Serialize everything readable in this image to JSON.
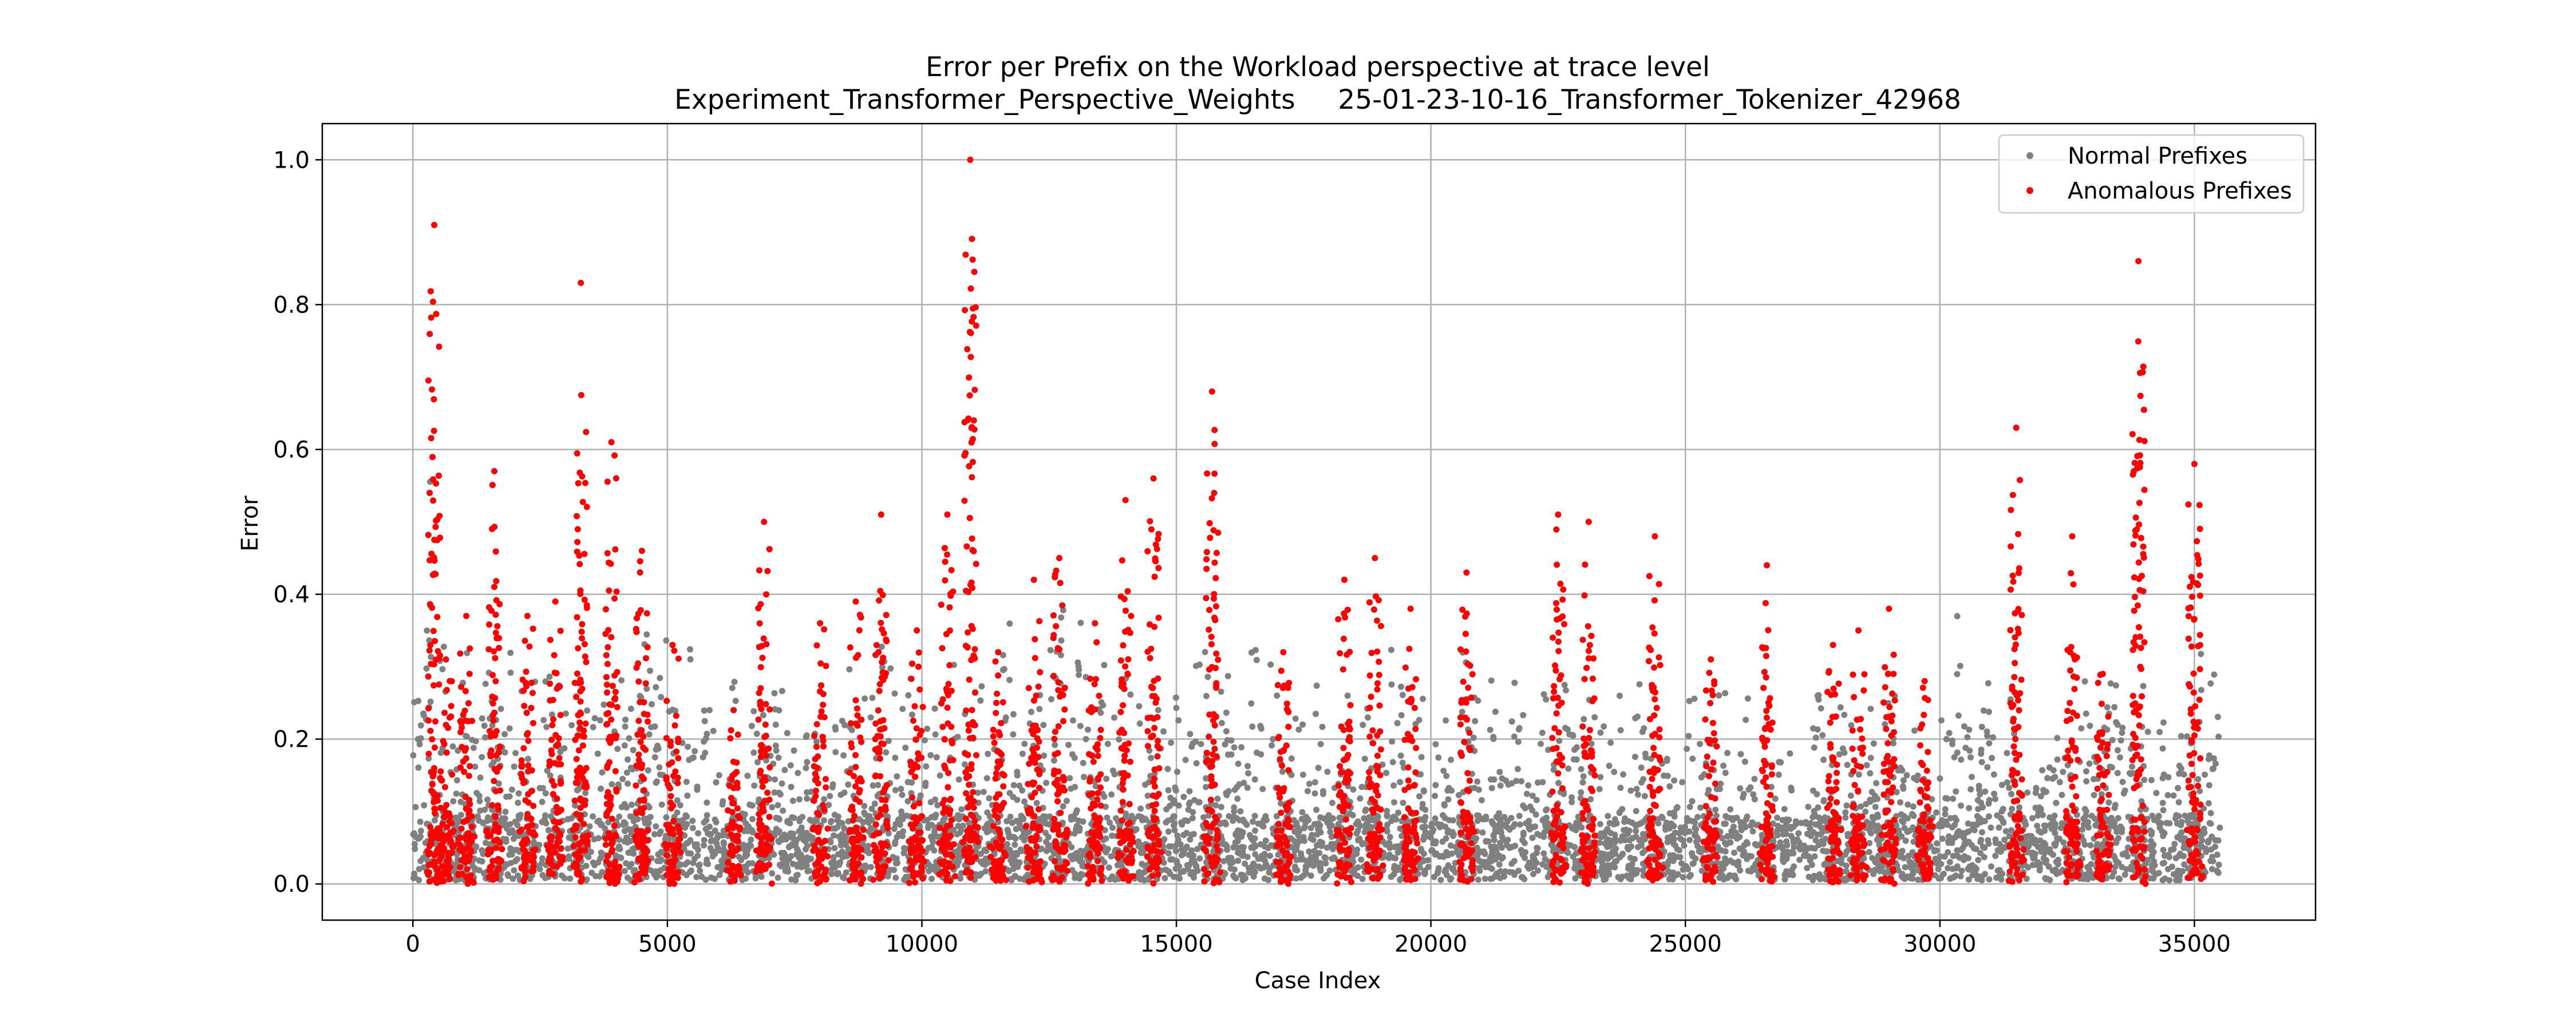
{
  "chart_data": {
    "type": "scatter",
    "title": "Error per Prefix on the Workload perspective at trace level",
    "subtitle": "Experiment_Transformer_Perspective_Weights     25-01-23-10-16_Transformer_Tokenizer_42968",
    "xlabel": "Case Index",
    "ylabel": "Error",
    "xlim": [
      -1780,
      37380
    ],
    "ylim": [
      -0.05,
      1.05
    ],
    "xticks": [
      0,
      5000,
      10000,
      15000,
      20000,
      25000,
      30000,
      35000
    ],
    "xtick_labels": [
      "0",
      "5000",
      "10000",
      "15000",
      "20000",
      "25000",
      "30000",
      "35000"
    ],
    "yticks": [
      0.0,
      0.2,
      0.4,
      0.6,
      0.8,
      1.0
    ],
    "ytick_labels": [
      "0.0",
      "0.2",
      "0.4",
      "0.6",
      "0.8",
      "1.0"
    ],
    "grid": true,
    "legend_position": "top-right",
    "colors": {
      "normal": "#808080",
      "anomalous": "#ff0000",
      "grid": "#b0b0b0"
    },
    "series": [
      {
        "name": "Normal Prefixes",
        "color": "#808080",
        "approx_point_count": 35500,
        "x_range": [
          0,
          35500
        ],
        "clusters": [
          {
            "x": 100,
            "peak": 0.28
          },
          {
            "x": 400,
            "peak": 0.68
          },
          {
            "x": 750,
            "peak": 0.24
          },
          {
            "x": 1100,
            "peak": 0.36
          },
          {
            "x": 1500,
            "peak": 0.33
          },
          {
            "x": 1900,
            "peak": 0.36
          },
          {
            "x": 2300,
            "peak": 0.36
          },
          {
            "x": 2700,
            "peak": 0.33
          },
          {
            "x": 3150,
            "peak": 0.34
          },
          {
            "x": 3600,
            "peak": 0.34
          },
          {
            "x": 4100,
            "peak": 0.36
          },
          {
            "x": 4600,
            "peak": 0.41
          },
          {
            "x": 5000,
            "peak": 0.39
          },
          {
            "x": 5400,
            "peak": 0.36
          },
          {
            "x": 5800,
            "peak": 0.34
          },
          {
            "x": 6300,
            "peak": 0.3
          },
          {
            "x": 6800,
            "peak": 0.3
          },
          {
            "x": 7200,
            "peak": 0.36
          },
          {
            "x": 7600,
            "peak": 0.33
          },
          {
            "x": 8100,
            "peak": 0.35
          },
          {
            "x": 8500,
            "peak": 0.37
          },
          {
            "x": 8900,
            "peak": 0.33
          },
          {
            "x": 9300,
            "peak": 0.36
          },
          {
            "x": 9800,
            "peak": 0.35
          },
          {
            "x": 10200,
            "peak": 0.31
          },
          {
            "x": 10700,
            "peak": 0.36
          },
          {
            "x": 11200,
            "peak": 0.33
          },
          {
            "x": 11700,
            "peak": 0.38
          },
          {
            "x": 12200,
            "peak": 0.33
          },
          {
            "x": 12700,
            "peak": 0.48
          },
          {
            "x": 13100,
            "peak": 0.42
          },
          {
            "x": 13600,
            "peak": 0.35
          },
          {
            "x": 14100,
            "peak": 0.38
          },
          {
            "x": 14600,
            "peak": 0.33
          },
          {
            "x": 15100,
            "peak": 0.37
          },
          {
            "x": 15500,
            "peak": 0.38
          },
          {
            "x": 16000,
            "peak": 0.35
          },
          {
            "x": 16500,
            "peak": 0.36
          },
          {
            "x": 16900,
            "peak": 0.34
          },
          {
            "x": 17400,
            "peak": 0.31
          },
          {
            "x": 17800,
            "peak": 0.3
          },
          {
            "x": 18300,
            "peak": 0.3
          },
          {
            "x": 18800,
            "peak": 0.29
          },
          {
            "x": 19300,
            "peak": 0.36
          },
          {
            "x": 19800,
            "peak": 0.3
          },
          {
            "x": 20300,
            "peak": 0.33
          },
          {
            "x": 20700,
            "peak": 0.48
          },
          {
            "x": 21200,
            "peak": 0.31
          },
          {
            "x": 21700,
            "peak": 0.3
          },
          {
            "x": 22200,
            "peak": 0.3
          },
          {
            "x": 22700,
            "peak": 0.34
          },
          {
            "x": 23200,
            "peak": 0.34
          },
          {
            "x": 23700,
            "peak": 0.3
          },
          {
            "x": 24200,
            "peak": 0.33
          },
          {
            "x": 24700,
            "peak": 0.26
          },
          {
            "x": 25200,
            "peak": 0.33
          },
          {
            "x": 25700,
            "peak": 0.36
          },
          {
            "x": 26200,
            "peak": 0.3
          },
          {
            "x": 26700,
            "peak": 0.3
          },
          {
            "x": 27100,
            "peak": 0.21
          },
          {
            "x": 27600,
            "peak": 0.3
          },
          {
            "x": 28100,
            "peak": 0.3
          },
          {
            "x": 28600,
            "peak": 0.26
          },
          {
            "x": 29100,
            "peak": 0.36
          },
          {
            "x": 29600,
            "peak": 0.27
          },
          {
            "x": 30100,
            "peak": 0.29
          },
          {
            "x": 30400,
            "peak": 0.43
          },
          {
            "x": 30900,
            "peak": 0.3
          },
          {
            "x": 31400,
            "peak": 0.3
          },
          {
            "x": 31900,
            "peak": 0.22
          },
          {
            "x": 32400,
            "peak": 0.34
          },
          {
            "x": 32900,
            "peak": 0.3
          },
          {
            "x": 33400,
            "peak": 0.36
          },
          {
            "x": 33900,
            "peak": 0.33
          },
          {
            "x": 34400,
            "peak": 0.29
          },
          {
            "x": 34900,
            "peak": 0.31
          },
          {
            "x": 35300,
            "peak": 0.44
          }
        ]
      },
      {
        "name": "Anomalous Prefixes",
        "color": "#ff0000",
        "approx_point_count": 9000,
        "baseline_range": [
          0.0,
          0.08
        ],
        "clusters": [
          {
            "x": 420,
            "peak": 0.91
          },
          {
            "x": 650,
            "peak": 0.31
          },
          {
            "x": 1050,
            "peak": 0.37
          },
          {
            "x": 1600,
            "peak": 0.57
          },
          {
            "x": 2250,
            "peak": 0.37
          },
          {
            "x": 2800,
            "peak": 0.39
          },
          {
            "x": 3300,
            "peak": 0.83
          },
          {
            "x": 3900,
            "peak": 0.61
          },
          {
            "x": 4500,
            "peak": 0.46
          },
          {
            "x": 5100,
            "peak": 0.33
          },
          {
            "x": 6300,
            "peak": 0.24
          },
          {
            "x": 6900,
            "peak": 0.5
          },
          {
            "x": 8000,
            "peak": 0.36
          },
          {
            "x": 8700,
            "peak": 0.39
          },
          {
            "x": 9200,
            "peak": 0.51
          },
          {
            "x": 9900,
            "peak": 0.35
          },
          {
            "x": 10500,
            "peak": 0.51
          },
          {
            "x": 10950,
            "peak": 1.0
          },
          {
            "x": 11500,
            "peak": 0.32
          },
          {
            "x": 12200,
            "peak": 0.42
          },
          {
            "x": 12700,
            "peak": 0.45
          },
          {
            "x": 13400,
            "peak": 0.36
          },
          {
            "x": 14000,
            "peak": 0.53
          },
          {
            "x": 14550,
            "peak": 0.56
          },
          {
            "x": 15700,
            "peak": 0.68
          },
          {
            "x": 17100,
            "peak": 0.32
          },
          {
            "x": 18300,
            "peak": 0.42
          },
          {
            "x": 18900,
            "peak": 0.45
          },
          {
            "x": 19600,
            "peak": 0.38
          },
          {
            "x": 20700,
            "peak": 0.43
          },
          {
            "x": 22500,
            "peak": 0.51
          },
          {
            "x": 23100,
            "peak": 0.5
          },
          {
            "x": 24400,
            "peak": 0.48
          },
          {
            "x": 25500,
            "peak": 0.31
          },
          {
            "x": 26600,
            "peak": 0.44
          },
          {
            "x": 27900,
            "peak": 0.33
          },
          {
            "x": 28400,
            "peak": 0.35
          },
          {
            "x": 29000,
            "peak": 0.38
          },
          {
            "x": 29700,
            "peak": 0.28
          },
          {
            "x": 31500,
            "peak": 0.63
          },
          {
            "x": 32600,
            "peak": 0.48
          },
          {
            "x": 33200,
            "peak": 0.29
          },
          {
            "x": 33900,
            "peak": 0.86
          },
          {
            "x": 35000,
            "peak": 0.58
          }
        ]
      }
    ]
  }
}
